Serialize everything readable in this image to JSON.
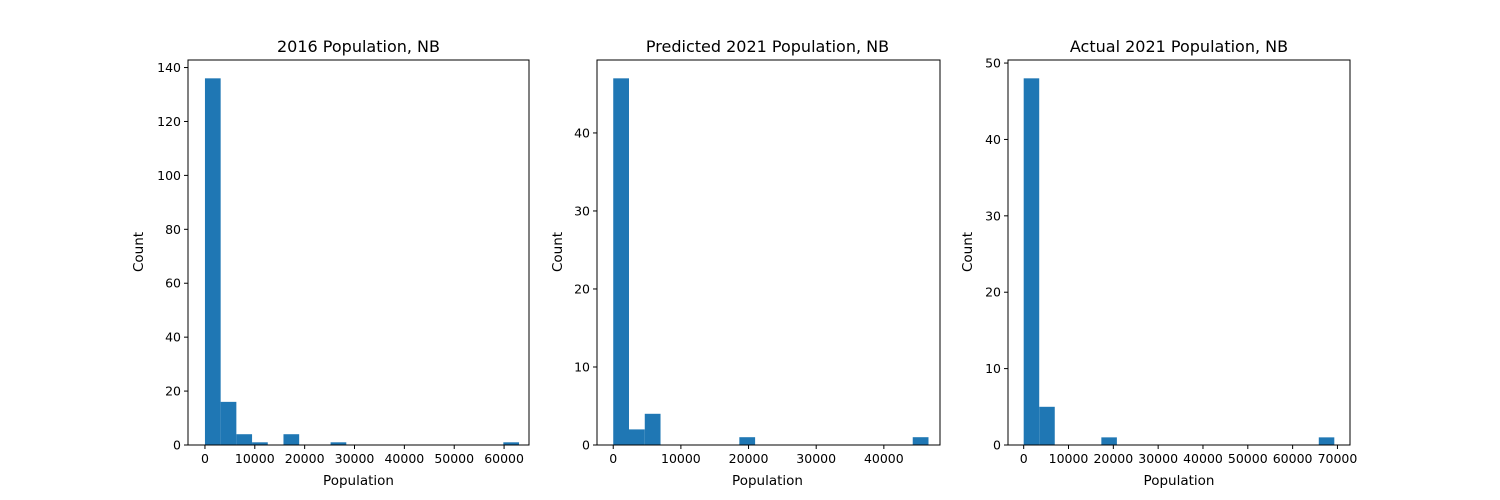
{
  "chart_data": [
    {
      "type": "bar",
      "title": "2016 Population, NB",
      "xlabel": "Population",
      "ylabel": "Count",
      "bar_color": "#1f77b4",
      "xlim": [
        -3400,
        65000
      ],
      "ylim": [
        0,
        142.8
      ],
      "xticks": [
        0,
        10000,
        20000,
        30000,
        40000,
        50000,
        60000
      ],
      "yticks": [
        0,
        20,
        40,
        60,
        80,
        100,
        120,
        140
      ],
      "bin_edges": [
        0,
        3150,
        6300,
        9450,
        12600,
        15750,
        18900,
        22050,
        25200,
        28350,
        31500,
        34650,
        37800,
        40950,
        44100,
        47250,
        50400,
        53550,
        56700,
        59850,
        63000
      ],
      "values": [
        136,
        16,
        4,
        1,
        0,
        4,
        0,
        0,
        1,
        0,
        0,
        0,
        0,
        0,
        0,
        0,
        0,
        0,
        0,
        1
      ]
    },
    {
      "type": "bar",
      "title": "Predicted 2021 Population, NB",
      "xlabel": "Population",
      "ylabel": "Count",
      "bar_color": "#1f77b4",
      "xlim": [
        -2400,
        48300
      ],
      "ylim": [
        0,
        49.35
      ],
      "xticks": [
        0,
        10000,
        20000,
        30000,
        40000
      ],
      "yticks": [
        0,
        10,
        20,
        30,
        40
      ],
      "bin_edges": [
        0,
        2330,
        4660,
        6990,
        9320,
        11650,
        13980,
        16310,
        18640,
        20970,
        23300,
        25630,
        27960,
        30290,
        32620,
        34950,
        37280,
        39610,
        41940,
        44270,
        46600
      ],
      "values": [
        47,
        2,
        4,
        0,
        0,
        0,
        0,
        0,
        1,
        0,
        0,
        0,
        0,
        0,
        0,
        0,
        0,
        0,
        0,
        1
      ]
    },
    {
      "type": "bar",
      "title": "Actual 2021 Population, NB",
      "xlabel": "Population",
      "ylabel": "Count",
      "bar_color": "#1f77b4",
      "xlim": [
        -3500,
        72800
      ],
      "ylim": [
        0,
        50.4
      ],
      "xticks": [
        0,
        10000,
        20000,
        30000,
        40000,
        50000,
        60000,
        70000
      ],
      "yticks": [
        0,
        10,
        20,
        30,
        40,
        50
      ],
      "bin_edges": [
        0,
        3465,
        6930,
        10395,
        13860,
        17325,
        20790,
        24255,
        27720,
        31185,
        34650,
        38115,
        41580,
        45045,
        48510,
        51975,
        55440,
        58905,
        62370,
        65835,
        69300
      ],
      "values": [
        48,
        5,
        0,
        0,
        0,
        1,
        0,
        0,
        0,
        0,
        0,
        0,
        0,
        0,
        0,
        0,
        0,
        0,
        0,
        1
      ]
    }
  ]
}
